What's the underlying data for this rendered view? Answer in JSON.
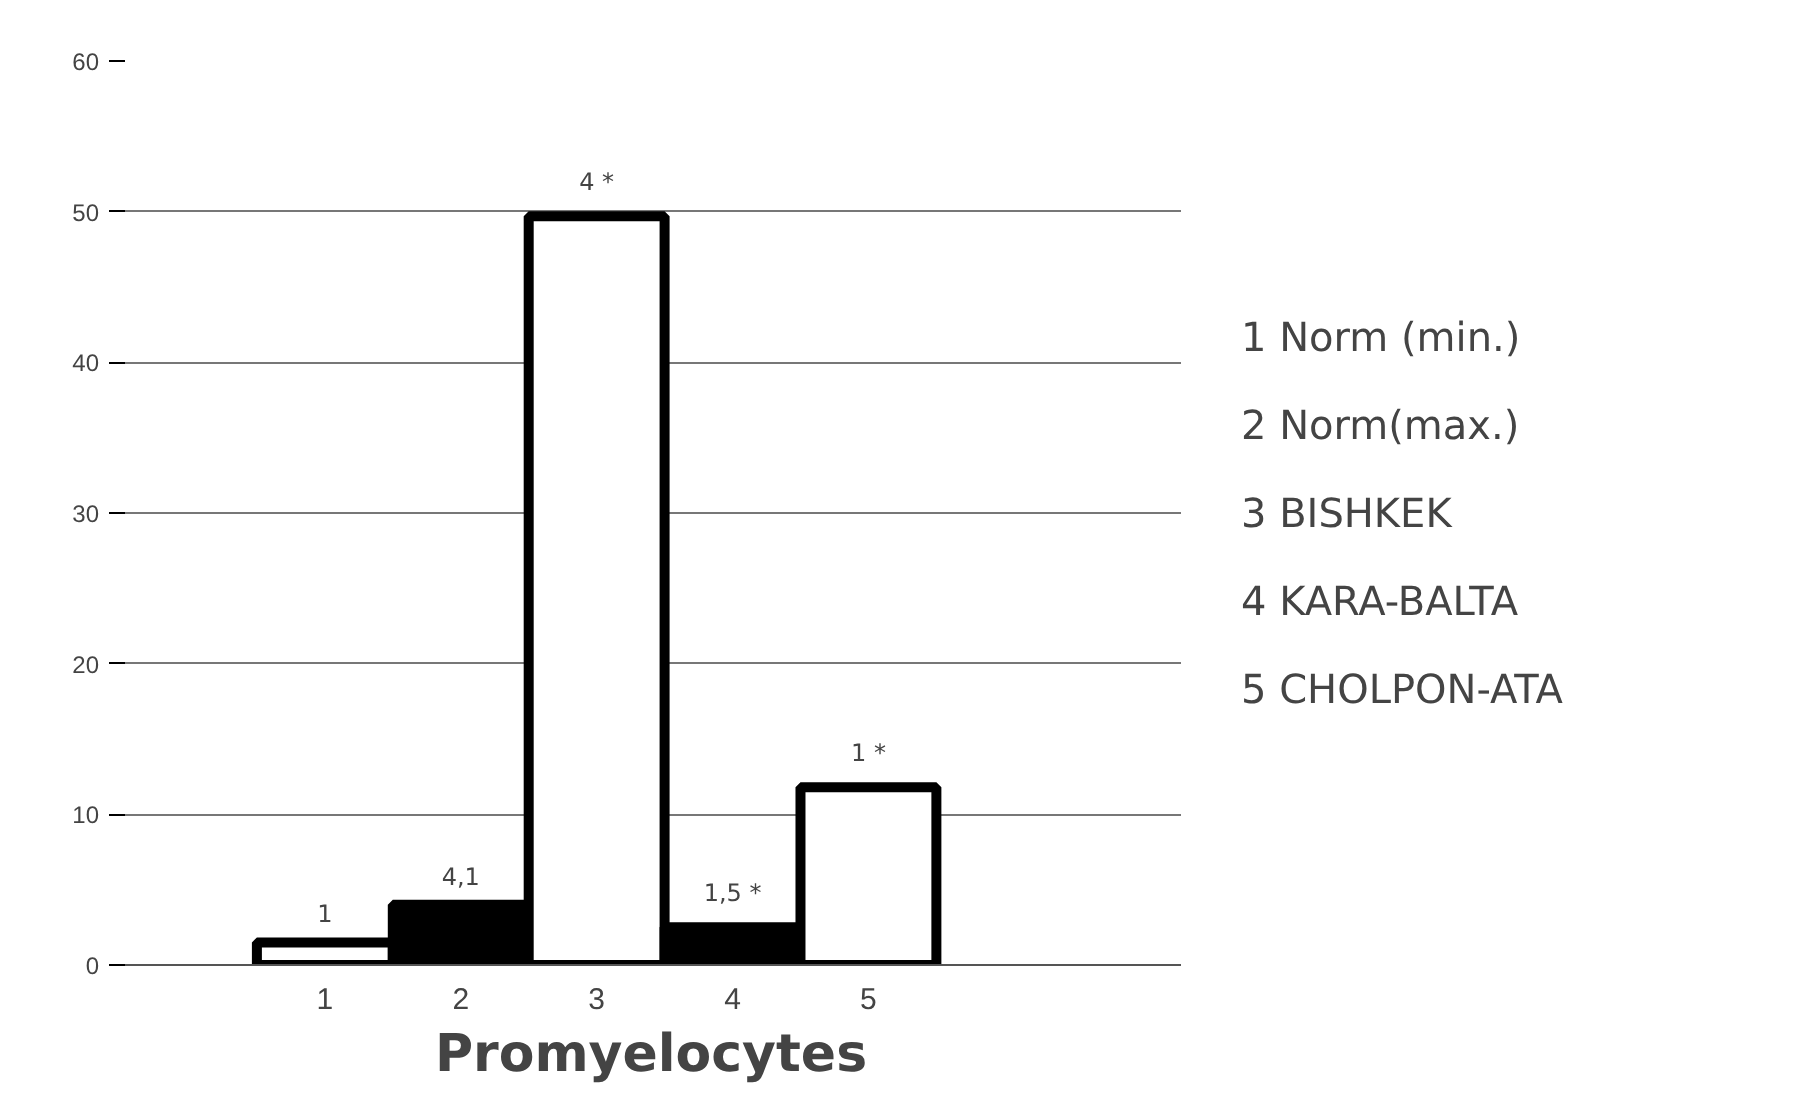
{
  "chart_data": {
    "type": "bar",
    "xlabel": "Promyelocytes",
    "categories": [
      "1",
      "2",
      "3",
      "4",
      "5"
    ],
    "values": [
      1.5,
      4,
      49.7,
      2.5,
      11.8
    ],
    "colors": [
      "#ffffff",
      "#000000",
      "#ffffff",
      "#000000",
      "#ffffff"
    ],
    "ylim": [
      0,
      60
    ],
    "yticks": [
      0,
      10,
      20,
      30,
      40,
      50,
      60
    ],
    "grid": "y",
    "annotations": [
      {
        "text": "1",
        "x": "1",
        "y": 1.5
      },
      {
        "text": "4,1",
        "x": "2",
        "y": 4
      },
      {
        "text": "4 *",
        "x": "3",
        "y": 49.7
      },
      {
        "text": "1,5 *",
        "x": "4",
        "y": 2.5
      },
      {
        "text": "1 *",
        "x": "5",
        "y": 11.8
      },
      "1  Norm (min.)",
      "2  Norm(max.)",
      "3  BISHKEK",
      "4  KARA-BALTA",
      "5  CHOLPON-ATA"
    ]
  }
}
